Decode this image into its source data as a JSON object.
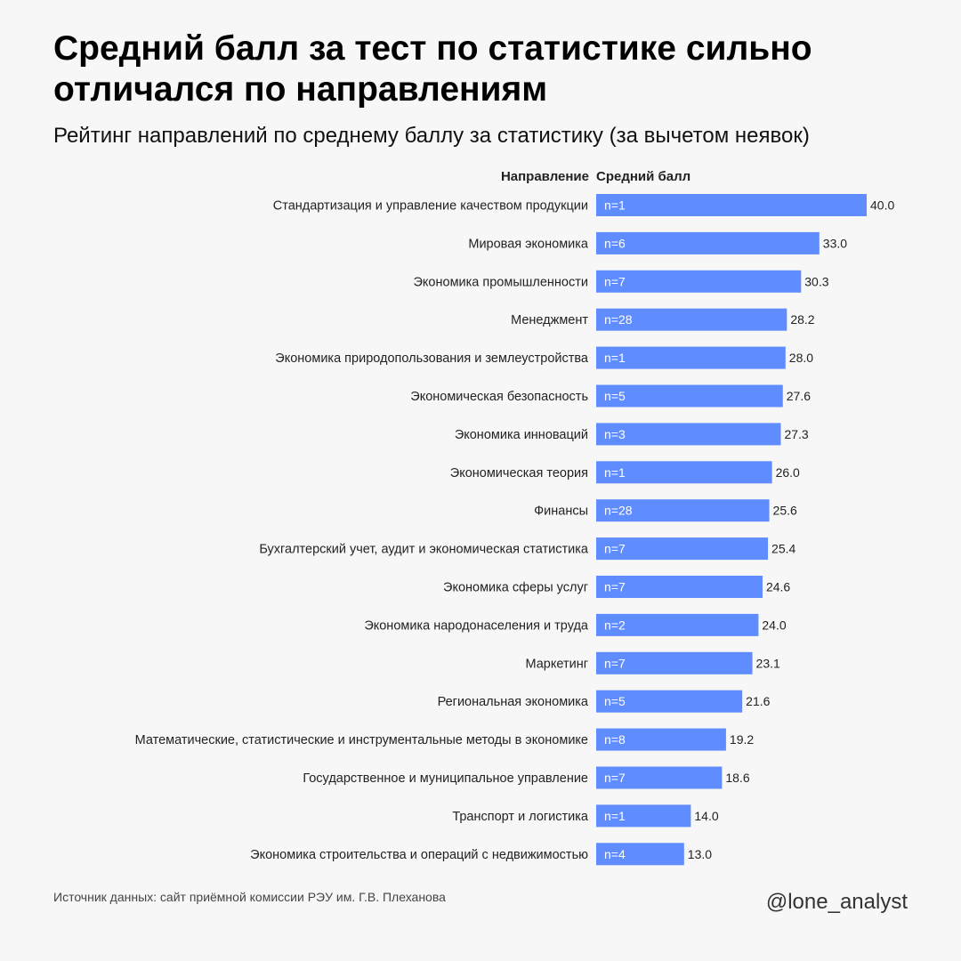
{
  "title": "Средний балл за тест по статистике сильно отличался по направлениям",
  "subtitle": "Рейтинг направлений по среднему баллу за статистику (за вычетом неявок)",
  "footer": {
    "source": "Источник данных: сайт приёмной комиссии РЭУ им. Г.В. Плеханова",
    "handle": "@lone_analyst"
  },
  "chart_data": {
    "type": "bar",
    "orientation": "horizontal",
    "column_headers": {
      "category": "Направление",
      "value": "Средний балл"
    },
    "categories": [
      "Стандартизация и управление качеством продукции",
      "Мировая экономика",
      "Экономика промышленности",
      "Менеджмент",
      "Экономика природопользования и землеустройства",
      "Экономическая безопасность",
      "Экономика инноваций",
      "Экономическая теория",
      "Финансы",
      "Бухгалтерский учет, аудит и экономическая статистика",
      "Экономика сферы услуг",
      "Экономика народонаселения и труда",
      "Маркетинг",
      "Региональная экономика",
      "Математические, статистические и инструментальные методы в экономике",
      "Государственное и муниципальное управление",
      "Транспорт и логистика",
      "Экономика строительства и операций с недвижимостью"
    ],
    "values": [
      40.0,
      33.0,
      30.3,
      28.2,
      28.0,
      27.6,
      27.3,
      26.0,
      25.6,
      25.4,
      24.6,
      24.0,
      23.1,
      21.6,
      19.2,
      18.6,
      14.0,
      13.0
    ],
    "value_labels": [
      "40.0",
      "33.0",
      "30.3",
      "28.2",
      "28.0",
      "27.6",
      "27.3",
      "26.0",
      "25.6",
      "25.4",
      "24.6",
      "24.0",
      "23.1",
      "21.6",
      "19.2",
      "18.6",
      "14.0",
      "13.0"
    ],
    "bar_labels": [
      "n=1",
      "n=6",
      "n=7",
      "n=28",
      "n=1",
      "n=5",
      "n=3",
      "n=1",
      "n=28",
      "n=7",
      "n=7",
      "n=2",
      "n=7",
      "n=5",
      "n=8",
      "n=7",
      "n=1",
      "n=4"
    ],
    "xlim": [
      0,
      40
    ],
    "bar_color": "#5f8cff",
    "grid": false
  }
}
